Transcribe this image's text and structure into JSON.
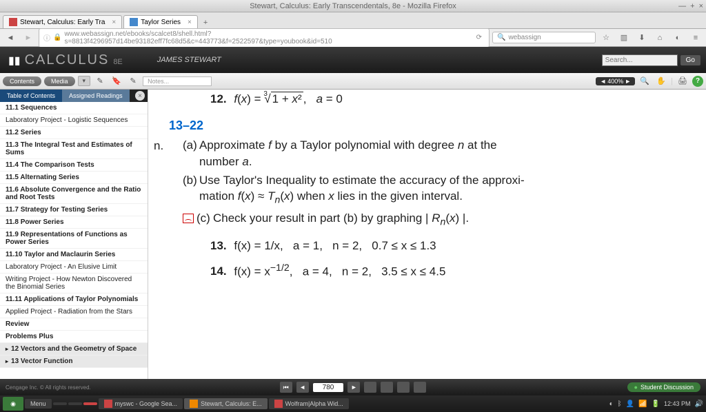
{
  "window": {
    "title": "Stewart, Calculus: Early Transcendentals, 8e - Mozilla Firefox"
  },
  "tabs": [
    {
      "label": "Stewart, Calculus: Early Tra",
      "active": false
    },
    {
      "label": "Taylor Series",
      "active": true
    }
  ],
  "urlbar": {
    "url": "www.webassign.net/ebooks/scalcet8/shell.html?s=8813f4296957d14be93182eff7fc68d5&c=443773&f=2522597&type=youbook&id=510",
    "search_placeholder": "webassign"
  },
  "book": {
    "title": "CALCULUS",
    "edition": "8E",
    "author": "JAMES STEWART",
    "search_placeholder": "Search...",
    "go": "Go"
  },
  "toolbar": {
    "contents": "Contents",
    "media": "Media",
    "notes_placeholder": "Notes...",
    "zoom": "400%"
  },
  "sidebar": {
    "tab_toc": "Table of Contents",
    "tab_assigned": "Assigned Readings",
    "items": [
      {
        "label": "11.1 Sequences",
        "bold": true
      },
      {
        "label": "Laboratory Project - Logistic Sequences"
      },
      {
        "label": "11.2 Series",
        "bold": true
      },
      {
        "label": "11.3 The Integral Test and Estimates of Sums",
        "bold": true
      },
      {
        "label": "11.4 The Comparison Tests",
        "bold": true
      },
      {
        "label": "11.5 Alternating Series",
        "bold": true
      },
      {
        "label": "11.6 Absolute Convergence and the Ratio and Root Tests",
        "bold": true
      },
      {
        "label": "11.7 Strategy for Testing Series",
        "bold": true
      },
      {
        "label": "11.8 Power Series",
        "bold": true
      },
      {
        "label": "11.9 Representations of Functions as Power Series",
        "bold": true
      },
      {
        "label": "11.10 Taylor and Maclaurin Series",
        "bold": true
      },
      {
        "label": "Laboratory Project - An Elusive Limit"
      },
      {
        "label": "Writing Project - How Newton Discovered the Binomial Series"
      },
      {
        "label": "11.11 Applications of Taylor Polynomials",
        "bold": true
      },
      {
        "label": "Applied Project - Radiation from the Stars"
      },
      {
        "label": "Review",
        "bold": true
      },
      {
        "label": "Problems Plus",
        "bold": true
      },
      {
        "label": "12 Vectors and the Geometry of Space",
        "chapter": true
      },
      {
        "label": "13 Vector Function",
        "chapter": true
      }
    ]
  },
  "content": {
    "prob12": {
      "num": "12.",
      "expr": "f(x) = ∛(1 + x²),   a = 0"
    },
    "range": "13–22",
    "instr_a": "Approximate f by a Taylor polynomial with degree n at the number a.",
    "instr_b": "Use Taylor's Inequality to estimate the accuracy of the approximation f(x) ≈ Tₙ(x) when x lies in the given interval.",
    "instr_c": "Check your result in part (b) by graphing | Rₙ(x) |.",
    "cutoff": "n.",
    "prob13": {
      "num": "13.",
      "expr": "f(x) = 1/x,   a = 1,   n = 2,   0.7 ≤ x ≤ 1.3"
    },
    "prob14": {
      "num": "14.",
      "expr": "f(x) = x⁻¹ᐟ²,   a = 4,   n = 2,   3.5 ≤ x ≤ 4.5"
    }
  },
  "pagebar": {
    "page": "780",
    "copyright": "Cengage Inc. © All rights reserved.",
    "discussion": "Student Discussion"
  },
  "taskbar": {
    "menu": "Menu",
    "items": [
      {
        "label": "myswc - Google Sea..."
      },
      {
        "label": "Stewart, Calculus: E...",
        "active": true
      },
      {
        "label": "Wolfram|Alpha Wid..."
      }
    ],
    "time": "12:43 PM"
  }
}
